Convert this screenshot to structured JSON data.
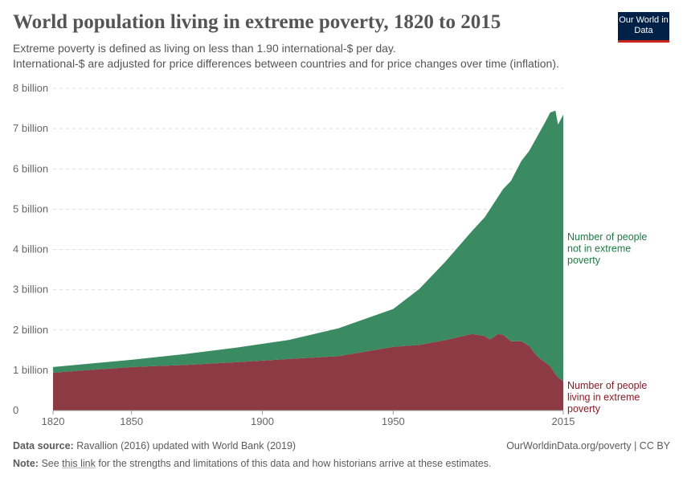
{
  "header": {
    "title": "World population living in extreme poverty, 1820 to 2015",
    "subtitle_1": "Extreme poverty is defined as living on less than 1.90 international-$ per day.",
    "subtitle_2": "International-$ are adjusted for price differences between countries and for price changes over time (inflation).",
    "logo": "Our World in Data"
  },
  "footer": {
    "source_label": "Data source:",
    "source": "Ravallion (2016) updated with World Bank (2019)",
    "url": "OurWorldinData.org/poverty | CC BY",
    "note_label": "Note:",
    "note_pre": "See",
    "note_link": "this link",
    "note_post": "for the strengths and limitations of this data and how historians arrive at these estimates."
  },
  "chart_data": {
    "type": "area",
    "stacked": true,
    "xlim": [
      1820,
      2015
    ],
    "ylim": [
      0,
      8000000000
    ],
    "x_ticks": [
      "1820",
      "1850",
      "1900",
      "1950",
      "2015"
    ],
    "y_ticks": [
      "0",
      "1 billion",
      "2 billion",
      "3 billion",
      "4 billion",
      "5 billion",
      "6 billion",
      "7 billion",
      "8 billion"
    ],
    "grid": "horizontal dashed",
    "legend": "right, inline labels",
    "x": [
      1820,
      1850,
      1870,
      1890,
      1910,
      1929,
      1950,
      1960,
      1970,
      1980,
      1985,
      1987,
      1990,
      1992,
      1995,
      1999,
      2002,
      2005,
      2008,
      2010,
      2012,
      2013,
      2015
    ],
    "series": [
      {
        "name": "Number of people living in extreme poverty",
        "color": "#8c3b44",
        "values": [
          0.94,
          1.08,
          1.13,
          1.2,
          1.28,
          1.35,
          1.58,
          1.63,
          1.75,
          1.9,
          1.85,
          1.76,
          1.9,
          1.88,
          1.72,
          1.72,
          1.6,
          1.35,
          1.2,
          1.1,
          0.9,
          0.82,
          0.73
        ]
      },
      {
        "name": "Number of people not in extreme poverty",
        "color": "#3a8a62",
        "values": [
          0.14,
          0.18,
          0.27,
          0.36,
          0.47,
          0.69,
          0.94,
          1.39,
          1.95,
          2.55,
          2.95,
          3.24,
          3.4,
          3.62,
          3.98,
          4.48,
          4.85,
          5.45,
          5.95,
          6.3,
          6.55,
          6.28,
          6.62
        ]
      }
    ],
    "unit": "billion"
  }
}
